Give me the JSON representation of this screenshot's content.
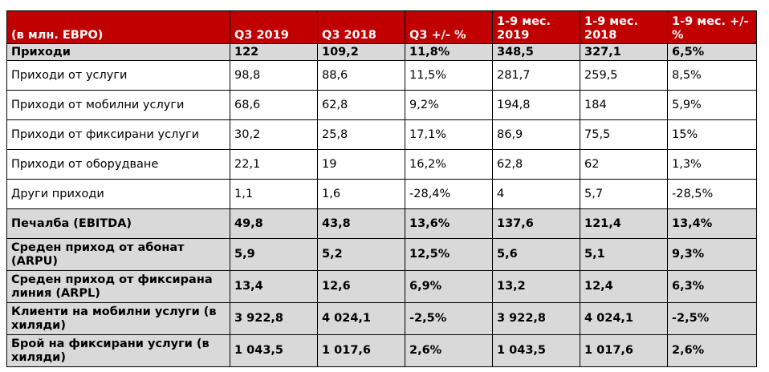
{
  "header": [
    "(в млн. ЕВРО)",
    "Q3 2019",
    "Q3 2018",
    "Q3 +/- %",
    "1-9 мес. 2019",
    "1-9 мес. 2018",
    "1-9 мес. +/- %"
  ],
  "rows": [
    {
      "cells": [
        "Приходи",
        "122",
        "109,2",
        "11,8%",
        "348,5",
        "327,1",
        "6,5%"
      ],
      "highlight": true
    },
    {
      "cells": [
        "Приходи от услуги",
        "98,8",
        "88,6",
        "11,5%",
        "281,7",
        "259,5",
        "8,5%"
      ],
      "highlight": false
    },
    {
      "cells": [
        "Приходи от мобилни услуги",
        "68,6",
        "62,8",
        "9,2%",
        "194,8",
        "184",
        "5,9%"
      ],
      "highlight": false
    },
    {
      "cells": [
        "Приходи от фиксирани услуги",
        "30,2",
        "25,8",
        "17,1%",
        "86,9",
        "75,5",
        "15%"
      ],
      "highlight": false
    },
    {
      "cells": [
        "Приходи от оборудване",
        "22,1",
        "19",
        "16,2%",
        "62,8",
        "62",
        "1,3%"
      ],
      "highlight": false
    },
    {
      "cells": [
        "Други приходи",
        "1,1",
        "1,6",
        "-28,4%",
        "4",
        "5,7",
        "-28,5%"
      ],
      "highlight": false
    },
    {
      "cells": [
        "Печалба (EBITDA)",
        "49,8",
        "43,8",
        "13,6%",
        "137,6",
        "121,4",
        "13,4%"
      ],
      "highlight": true
    },
    {
      "cells": [
        "Среден приход от абонат (ARPU)",
        "5,9",
        "5,2",
        "12,5%",
        "5,6",
        "5,1",
        "9,3%"
      ],
      "highlight": true
    },
    {
      "cells": [
        "Среден приход от фиксирана линия (ARPL)",
        "13,4",
        "12,6",
        "6,9%",
        "13,2",
        "12,4",
        "6,3%"
      ],
      "highlight": true
    },
    {
      "cells": [
        "Клиенти на мобилни услуги (в хиляди)",
        "3 922,8",
        "4 024,1",
        "-2,5%",
        "3 922,8",
        "4 024,1",
        "-2,5%"
      ],
      "highlight": true
    },
    {
      "cells": [
        "Брой на фиксирани услуги (в хиляди)",
        "1 043,5",
        "1 017,6",
        "2,6%",
        "1 043,5",
        "1 017,6",
        "2,6%"
      ],
      "highlight": true
    }
  ]
}
